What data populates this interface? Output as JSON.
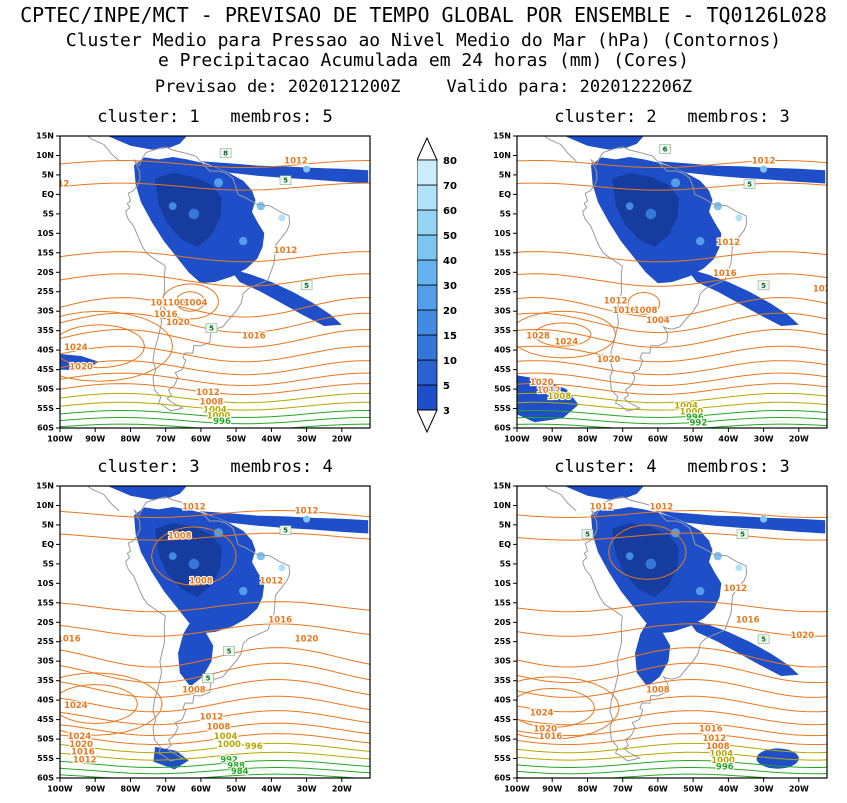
{
  "header": {
    "title": "CPTEC/INPE/MCT - PREVISAO DE TEMPO GLOBAL POR ENSEMBLE - TQ0126L028",
    "subtitle1": "Cluster Medio para Pressao ao Nivel Medio do Mar (hPa) (Contornos)",
    "subtitle2": "e Precipitacao Acumulada em 24 horas (mm) (Cores)",
    "forecast_label": "Previsao de:",
    "forecast_value": "2020121200Z",
    "valid_label": "Valido para:",
    "valid_value": "2020122206Z"
  },
  "axes": {
    "lat_labels": [
      "15N",
      "10N",
      "5N",
      "EQ",
      "5S",
      "10S",
      "15S",
      "20S",
      "25S",
      "30S",
      "35S",
      "40S",
      "45S",
      "50S",
      "55S",
      "60S"
    ],
    "lon_labels": [
      "100W",
      "90W",
      "80W",
      "70W",
      "60W",
      "50W",
      "40W",
      "30W",
      "20W"
    ]
  },
  "colorbar": {
    "levels": [
      3,
      5,
      10,
      15,
      20,
      30,
      40,
      50,
      60,
      70,
      80
    ],
    "colors": [
      "#1e4fc8",
      "#2a62d2",
      "#3476da",
      "#428ae2",
      "#539ee8",
      "#66b2ee",
      "#7cc4f2",
      "#96d4f6",
      "#b0e2fa",
      "#cceefc"
    ],
    "arrow_color": "#ffffff"
  },
  "colors": {
    "precip_base": "#1e4fc8",
    "precip_dark": "#153c9e",
    "contour_orange": "#e8781e",
    "contour_yellow": "#b5a800",
    "contour_green": "#22a822",
    "coast_gray": "#9a9a9a"
  },
  "panels": [
    {
      "title": "cluster: 1   membros: 5",
      "cluster": 1,
      "membros": 5,
      "labels": [
        {
          "t": "1012",
          "lon": -33,
          "lat": 8,
          "c": "o"
        },
        {
          "t": "12",
          "lon": -99,
          "lat": 2,
          "c": "o"
        },
        {
          "t": "1012",
          "lon": -36,
          "lat": -15,
          "c": "o"
        },
        {
          "t": "1016",
          "lon": -45,
          "lat": -37,
          "c": "o"
        },
        {
          "t": "1012",
          "lon": -71,
          "lat": -28.5,
          "c": "o"
        },
        {
          "t": "1008",
          "lon": -66,
          "lat": -28.5,
          "c": "o"
        },
        {
          "t": "1004",
          "lon": -61.5,
          "lat": -28.5,
          "c": "o"
        },
        {
          "t": "1016",
          "lon": -70,
          "lat": -31.5,
          "c": "o"
        },
        {
          "t": "1020",
          "lon": -66.5,
          "lat": -33.5,
          "c": "o"
        },
        {
          "t": "1024",
          "lon": -95.5,
          "lat": -40,
          "c": "o"
        },
        {
          "t": "1020",
          "lon": -94,
          "lat": -45,
          "c": "o"
        },
        {
          "t": "1012",
          "lon": -58,
          "lat": -51.5,
          "c": "o"
        },
        {
          "t": "1008",
          "lon": -57,
          "lat": -54,
          "c": "o"
        },
        {
          "t": "1004",
          "lon": -56,
          "lat": -56,
          "c": "y"
        },
        {
          "t": "1000",
          "lon": -55,
          "lat": -57.5,
          "c": "y"
        },
        {
          "t": "996",
          "lon": -54,
          "lat": -59,
          "c": "g"
        }
      ],
      "boxes": [
        {
          "t": "5",
          "lon": -36,
          "lat": 3
        },
        {
          "t": "8",
          "lon": -53,
          "lat": 10
        },
        {
          "t": "5",
          "lon": -30,
          "lat": -24
        },
        {
          "t": "5",
          "lon": -57,
          "lat": -35
        }
      ]
    },
    {
      "title": "cluster: 2   membros: 3",
      "cluster": 2,
      "membros": 3,
      "labels": [
        {
          "t": "1012",
          "lon": -30,
          "lat": 8,
          "c": "o"
        },
        {
          "t": "1012",
          "lon": -40,
          "lat": -13,
          "c": "o"
        },
        {
          "t": "1016",
          "lon": -41,
          "lat": -21,
          "c": "o"
        },
        {
          "t": "102",
          "lon": -13.5,
          "lat": -25,
          "c": "o"
        },
        {
          "t": "1012",
          "lon": -72,
          "lat": -28,
          "c": "o"
        },
        {
          "t": "1016",
          "lon": -69.5,
          "lat": -30.5,
          "c": "o"
        },
        {
          "t": "1008",
          "lon": -63.5,
          "lat": -30.5,
          "c": "o"
        },
        {
          "t": "1004",
          "lon": -60,
          "lat": -33,
          "c": "o"
        },
        {
          "t": "1028",
          "lon": -94,
          "lat": -37,
          "c": "o"
        },
        {
          "t": "1024",
          "lon": -86,
          "lat": -38.5,
          "c": "o"
        },
        {
          "t": "1020",
          "lon": -74,
          "lat": -43,
          "c": "o"
        },
        {
          "t": "1020",
          "lon": -93,
          "lat": -49,
          "c": "o"
        },
        {
          "t": "1012",
          "lon": -91,
          "lat": -51,
          "c": "o"
        },
        {
          "t": "1008",
          "lon": -88,
          "lat": -52.5,
          "c": "y"
        },
        {
          "t": "1004",
          "lon": -52,
          "lat": -55,
          "c": "y"
        },
        {
          "t": "1000",
          "lon": -50.5,
          "lat": -56.5,
          "c": "y"
        },
        {
          "t": "996",
          "lon": -49.5,
          "lat": -58,
          "c": "g"
        },
        {
          "t": "992",
          "lon": -48.5,
          "lat": -59.3,
          "c": "g"
        }
      ],
      "boxes": [
        {
          "t": "5",
          "lon": -34,
          "lat": 2
        },
        {
          "t": "6",
          "lon": -58,
          "lat": 11
        },
        {
          "t": "5",
          "lon": -30,
          "lat": -24
        }
      ]
    },
    {
      "title": "cluster: 3   membros: 4",
      "cluster": 3,
      "membros": 4,
      "labels": [
        {
          "t": "1012",
          "lon": -62,
          "lat": 9,
          "c": "o"
        },
        {
          "t": "1012",
          "lon": -30,
          "lat": 8,
          "c": "o"
        },
        {
          "t": "1008",
          "lon": -66,
          "lat": 1.5,
          "c": "o"
        },
        {
          "t": "1008",
          "lon": -60,
          "lat": -10,
          "c": "o"
        },
        {
          "t": "1012",
          "lon": -40,
          "lat": -10,
          "c": "o"
        },
        {
          "t": "1016",
          "lon": -37.5,
          "lat": -20,
          "c": "o"
        },
        {
          "t": "1020",
          "lon": -30,
          "lat": -25,
          "c": "o"
        },
        {
          "t": "1016",
          "lon": -97.5,
          "lat": -25,
          "c": "o"
        },
        {
          "t": "1008",
          "lon": -62,
          "lat": -38,
          "c": "o"
        },
        {
          "t": "1024",
          "lon": -95.5,
          "lat": -42,
          "c": "o"
        },
        {
          "t": "1012",
          "lon": -57,
          "lat": -45,
          "c": "o"
        },
        {
          "t": "1008",
          "lon": -55,
          "lat": -47.5,
          "c": "o"
        },
        {
          "t": "1024",
          "lon": -94.5,
          "lat": -50,
          "c": "o"
        },
        {
          "t": "1020",
          "lon": -94,
          "lat": -52,
          "c": "o"
        },
        {
          "t": "1016",
          "lon": -93.5,
          "lat": -54,
          "c": "o"
        },
        {
          "t": "1012",
          "lon": -93,
          "lat": -56,
          "c": "o"
        },
        {
          "t": "1004",
          "lon": -53,
          "lat": -50,
          "c": "y"
        },
        {
          "t": "1000",
          "lon": -52,
          "lat": -52,
          "c": "y"
        },
        {
          "t": "996",
          "lon": -45,
          "lat": -52.5,
          "c": "y"
        },
        {
          "t": "992",
          "lon": -52,
          "lat": -56,
          "c": "g"
        },
        {
          "t": "988",
          "lon": -50,
          "lat": -57.5,
          "c": "g"
        },
        {
          "t": "984",
          "lon": -49,
          "lat": -59,
          "c": "g"
        }
      ],
      "boxes": [
        {
          "t": "5",
          "lon": -36,
          "lat": 3
        },
        {
          "t": "5",
          "lon": -52,
          "lat": -28
        },
        {
          "t": "5",
          "lon": -58,
          "lat": -35
        }
      ]
    },
    {
      "title": "cluster: 4   membros: 3",
      "cluster": 4,
      "membros": 3,
      "labels": [
        {
          "t": "1012",
          "lon": -76,
          "lat": 9,
          "c": "o"
        },
        {
          "t": "1012",
          "lon": -59,
          "lat": 9,
          "c": "o"
        },
        {
          "t": "1012",
          "lon": -38,
          "lat": -12,
          "c": "o"
        },
        {
          "t": "1016",
          "lon": -34.5,
          "lat": -20,
          "c": "o"
        },
        {
          "t": "1020",
          "lon": -19,
          "lat": -24,
          "c": "o"
        },
        {
          "t": "1008",
          "lon": -60,
          "lat": -38,
          "c": "o"
        },
        {
          "t": "1024",
          "lon": -93,
          "lat": -44,
          "c": "o"
        },
        {
          "t": "1020",
          "lon": -92,
          "lat": -48,
          "c": "o"
        },
        {
          "t": "1016",
          "lon": -90.5,
          "lat": -50,
          "c": "o"
        },
        {
          "t": "1016",
          "lon": -45,
          "lat": -48,
          "c": "o"
        },
        {
          "t": "1012",
          "lon": -44,
          "lat": -50.5,
          "c": "o"
        },
        {
          "t": "1008",
          "lon": -43,
          "lat": -52.5,
          "c": "o"
        },
        {
          "t": "1004",
          "lon": -42,
          "lat": -54.5,
          "c": "y"
        },
        {
          "t": "1000",
          "lon": -41.5,
          "lat": -56.2,
          "c": "y"
        },
        {
          "t": "996",
          "lon": -41,
          "lat": -57.8,
          "c": "g"
        }
      ],
      "boxes": [
        {
          "t": "5",
          "lon": -36,
          "lat": 2
        },
        {
          "t": "5",
          "lon": -80,
          "lat": 2
        },
        {
          "t": "5",
          "lon": -30,
          "lat": -25
        }
      ]
    }
  ],
  "chart_data": {
    "type": "heatmap",
    "subtype": "contour-precipitation-map-multipanel",
    "title": "CPTEC/INPE/MCT - PREVISAO DE TEMPO GLOBAL POR ENSEMBLE - TQ0126L028",
    "subtitle": "Cluster Medio para Pressao ao Nivel Medio do Mar (hPa) (Contornos) e Precipitacao Acumulada em 24 horas (mm) (Cores)",
    "init_time": "2020121200Z",
    "valid_time": "2020122206Z",
    "panels": [
      {
        "cluster": 1,
        "membros": 5
      },
      {
        "cluster": 2,
        "membros": 3
      },
      {
        "cluster": 3,
        "membros": 4
      },
      {
        "cluster": 4,
        "membros": 3
      }
    ],
    "precip_scale_mm": [
      3,
      5,
      10,
      15,
      20,
      30,
      40,
      50,
      60,
      70,
      80
    ],
    "pressure_contour_labels_hPa": [
      984,
      988,
      992,
      996,
      1000,
      1004,
      1008,
      1012,
      1016,
      1020,
      1024,
      1028
    ],
    "lon_ticks": [
      "100W",
      "90W",
      "80W",
      "70W",
      "60W",
      "50W",
      "40W",
      "30W",
      "20W"
    ],
    "lat_ticks": [
      "15N",
      "10N",
      "5N",
      "EQ",
      "5S",
      "10S",
      "15S",
      "20S",
      "25S",
      "30S",
      "35S",
      "40S",
      "45S",
      "50S",
      "55S",
      "60S"
    ],
    "region": "South America and adjacent oceans",
    "legend_position": "center-between-top-panels",
    "grid": false
  }
}
